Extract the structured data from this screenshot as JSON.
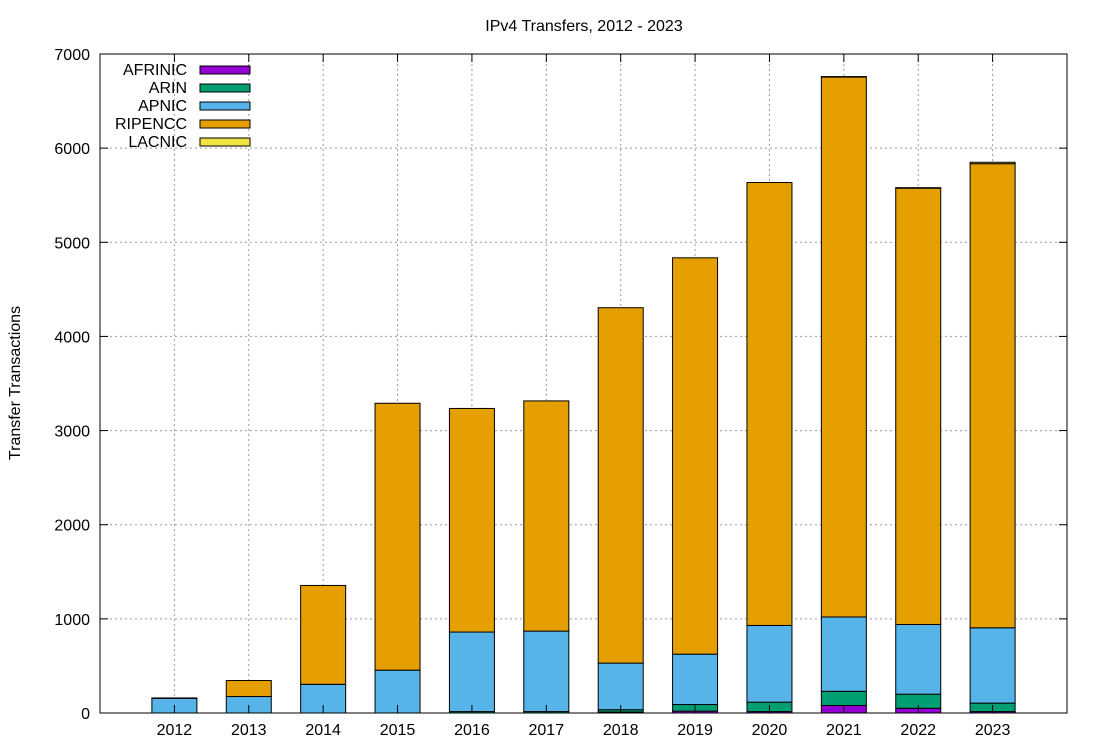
{
  "chart_data": {
    "type": "bar",
    "stacked": true,
    "title": "IPv4 Transfers, 2012 - 2023",
    "xlabel": "",
    "ylabel": "Transfer Transactions",
    "ylim": [
      0,
      7000
    ],
    "yticks": [
      0,
      1000,
      2000,
      3000,
      4000,
      5000,
      6000,
      7000
    ],
    "grid": true,
    "legend_position": "top-left",
    "categories": [
      "2012",
      "2013",
      "2014",
      "2015",
      "2016",
      "2017",
      "2018",
      "2019",
      "2020",
      "2021",
      "2022",
      "2023"
    ],
    "series": [
      {
        "name": "AFRINIC",
        "color": "#9400d3",
        "values": [
          0,
          0,
          0,
          0,
          0,
          0,
          10,
          20,
          15,
          80,
          50,
          15
        ]
      },
      {
        "name": "ARIN",
        "color": "#009e73",
        "values": [
          0,
          0,
          0,
          0,
          15,
          15,
          25,
          70,
          100,
          150,
          150,
          90
        ]
      },
      {
        "name": "APNIC",
        "color": "#56b4e9",
        "values": [
          155,
          175,
          305,
          455,
          845,
          855,
          495,
          535,
          815,
          790,
          740,
          800
        ]
      },
      {
        "name": "RIPENCC",
        "color": "#e69f00",
        "values": [
          5,
          170,
          1050,
          2835,
          2375,
          2445,
          3775,
          4210,
          4705,
          5735,
          4635,
          4930
        ]
      },
      {
        "name": "LACNIC",
        "color": "#f0e442",
        "values": [
          0,
          0,
          0,
          0,
          0,
          0,
          0,
          0,
          0,
          5,
          5,
          15
        ]
      }
    ]
  }
}
